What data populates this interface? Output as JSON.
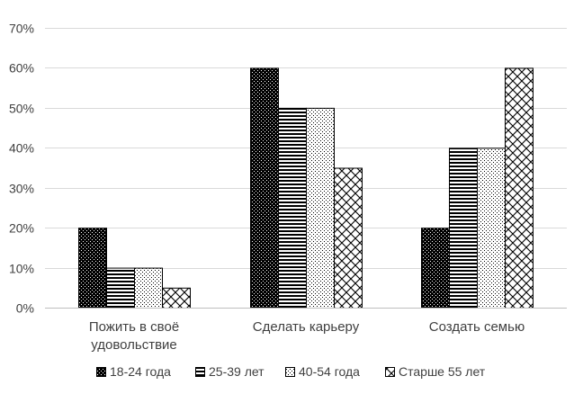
{
  "chart_data": {
    "type": "bar",
    "title": "",
    "xlabel": "",
    "ylabel": "",
    "ylim": [
      0,
      70
    ],
    "y_tick_step": 10,
    "y_tick_format": "percent",
    "grid": true,
    "legend_position": "bottom",
    "categories": [
      [
        "Пожить в своё",
        "удовольствие"
      ],
      [
        "Сделать карьеру"
      ],
      [
        "Создать семью"
      ]
    ],
    "series": [
      {
        "name": "18-24 года",
        "pattern": "dense-dots",
        "values": [
          20,
          60,
          20
        ]
      },
      {
        "name": "25-39 лет",
        "pattern": "horizontal-lines",
        "values": [
          10,
          50,
          40
        ]
      },
      {
        "name": "40-54 года",
        "pattern": "sparse-dots",
        "values": [
          10,
          50,
          40
        ]
      },
      {
        "name": "Старше 55 лет",
        "pattern": "diagonal-cross",
        "values": [
          5,
          35,
          60
        ]
      }
    ]
  },
  "colors": {
    "bar_stroke": "#000000",
    "gridline": "#d9d9d9",
    "axis": "#bfbfbf",
    "text": "#404040"
  }
}
